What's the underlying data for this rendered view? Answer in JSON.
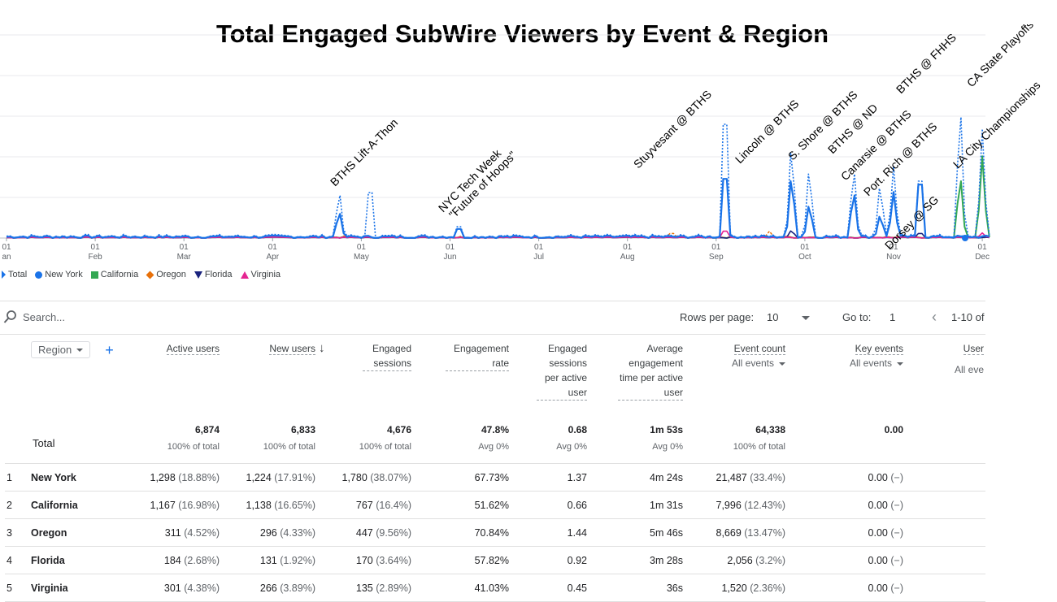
{
  "title": "Total Engaged SubWire Viewers by Event & Region",
  "colors": {
    "total": "#1a73e8",
    "new_york": "#1a73e8",
    "california": "#34a853",
    "oregon": "#e8710a",
    "florida": "#1a237e",
    "virginia": "#e52592"
  },
  "chart_data": {
    "type": "line",
    "x_ticks": [
      {
        "day": "01",
        "month": "an"
      },
      {
        "day": "01",
        "month": "Feb"
      },
      {
        "day": "01",
        "month": "Mar"
      },
      {
        "day": "01",
        "month": "Apr"
      },
      {
        "day": "01",
        "month": "May"
      },
      {
        "day": "01",
        "month": "Jun"
      },
      {
        "day": "01",
        "month": "Jul"
      },
      {
        "day": "01",
        "month": "Aug"
      },
      {
        "day": "01",
        "month": "Sep"
      },
      {
        "day": "01",
        "month": "Oct"
      },
      {
        "day": "01",
        "month": "Nov"
      },
      {
        "day": "01",
        "month": "Dec"
      }
    ],
    "annotations": [
      "BTHS Lift-A-Thon",
      "NYC Tech Week",
      "\"Future of Hoops\"",
      "Stuyvesant @ BTHS",
      "Lincoln @ BTHS",
      "S. Shore @ BTHS",
      "BTHS @ ND",
      "Canarsie @ BTHS",
      "Port. Rich @ BTHS",
      "Dorsey @ SG",
      "BTHS @ FHHS",
      "CA State Playoffs",
      "LA City Championships"
    ],
    "series": [
      {
        "name": "Total",
        "peaks": [
          {
            "month": 3.75,
            "value": 30
          },
          {
            "month": 4.1,
            "value": 40
          },
          {
            "month": 5.1,
            "value": 10
          },
          {
            "month": 8.1,
            "value": 100
          },
          {
            "month": 8.85,
            "value": 60
          },
          {
            "month": 9.05,
            "value": 45
          },
          {
            "month": 9.55,
            "value": 45
          },
          {
            "month": 9.85,
            "value": 35
          },
          {
            "month": 10.0,
            "value": 42
          },
          {
            "month": 10.3,
            "value": 50
          },
          {
            "month": 10.75,
            "value": 85
          },
          {
            "month": 11.0,
            "value": 64
          },
          {
            "month": 11.3,
            "value": 88
          }
        ]
      },
      {
        "name": "New York",
        "peaks": [
          {
            "month": 3.75,
            "value": 17
          },
          {
            "month": 5.1,
            "value": 8
          },
          {
            "month": 8.1,
            "value": 52
          },
          {
            "month": 8.85,
            "value": 40
          },
          {
            "month": 9.05,
            "value": 22
          },
          {
            "month": 9.55,
            "value": 30
          },
          {
            "month": 9.85,
            "value": 15
          },
          {
            "month": 10.0,
            "value": 27
          },
          {
            "month": 10.3,
            "value": 47
          }
        ]
      },
      {
        "name": "California",
        "peaks": [
          {
            "month": 10.75,
            "value": 40
          },
          {
            "month": 11.0,
            "value": 48
          },
          {
            "month": 11.3,
            "value": 45
          }
        ]
      },
      {
        "name": "Oregon",
        "peaks": [
          {
            "month": 7.5,
            "value": 4
          },
          {
            "month": 8.6,
            "value": 4
          }
        ]
      },
      {
        "name": "Florida",
        "peaks": [
          {
            "month": 8.85,
            "value": 5
          },
          {
            "month": 10.3,
            "value": 4
          }
        ]
      },
      {
        "name": "Virginia",
        "peaks": [
          {
            "month": 8.1,
            "value": 6
          },
          {
            "month": 11.0,
            "value": 3
          }
        ]
      }
    ]
  },
  "toolbar": {
    "search_placeholder": "Search...",
    "rows_per_page_label": "Rows per page:",
    "rows_per_page_value": "10",
    "goto_label": "Go to:",
    "goto_value": "1",
    "page_range": "1-10 of"
  },
  "table": {
    "dimension_label": "Region",
    "columns": [
      {
        "label": "Active users",
        "sub": ""
      },
      {
        "label": "New users",
        "sub": ""
      },
      {
        "label": "Engaged sessions",
        "sub": ""
      },
      {
        "label": "Engagement rate",
        "sub": ""
      },
      {
        "label": "Engaged sessions per active user",
        "sub": ""
      },
      {
        "label": "Average engagement time per active user",
        "sub": ""
      },
      {
        "label": "Event count",
        "sub": "All events"
      },
      {
        "label": "Key events",
        "sub": "All events"
      },
      {
        "label": "User",
        "sub": "All eve"
      }
    ],
    "total": {
      "label": "Total",
      "cells": [
        {
          "value": "6,874",
          "sub": "100% of total"
        },
        {
          "value": "6,833",
          "sub": "100% of total"
        },
        {
          "value": "4,676",
          "sub": "100% of total"
        },
        {
          "value": "47.8%",
          "sub": "Avg 0%"
        },
        {
          "value": "0.68",
          "sub": "Avg 0%"
        },
        {
          "value": "1m 53s",
          "sub": "Avg 0%"
        },
        {
          "value": "64,338",
          "sub": "100% of total"
        },
        {
          "value": "0.00",
          "sub": ""
        }
      ]
    },
    "rows": [
      {
        "idx": "1",
        "region": "New York",
        "active": "1,298",
        "active_pct": "(18.88%)",
        "new": "1,224",
        "new_pct": "(17.91%)",
        "engaged": "1,780",
        "engaged_pct": "(38.07%)",
        "rate": "67.73%",
        "per_user": "1.37",
        "avg_time": "4m 24s",
        "events": "21,487",
        "events_pct": "(33.4%)",
        "key": "0.00",
        "key_pct": "(−)"
      },
      {
        "idx": "2",
        "region": "California",
        "active": "1,167",
        "active_pct": "(16.98%)",
        "new": "1,138",
        "new_pct": "(16.65%)",
        "engaged": "767",
        "engaged_pct": "(16.4%)",
        "rate": "51.62%",
        "per_user": "0.66",
        "avg_time": "1m 31s",
        "events": "7,996",
        "events_pct": "(12.43%)",
        "key": "0.00",
        "key_pct": "(−)"
      },
      {
        "idx": "3",
        "region": "Oregon",
        "active": "311",
        "active_pct": "(4.52%)",
        "new": "296",
        "new_pct": "(4.33%)",
        "engaged": "447",
        "engaged_pct": "(9.56%)",
        "rate": "70.84%",
        "per_user": "1.44",
        "avg_time": "5m 46s",
        "events": "8,669",
        "events_pct": "(13.47%)",
        "key": "0.00",
        "key_pct": "(−)"
      },
      {
        "idx": "4",
        "region": "Florida",
        "active": "184",
        "active_pct": "(2.68%)",
        "new": "131",
        "new_pct": "(1.92%)",
        "engaged": "170",
        "engaged_pct": "(3.64%)",
        "rate": "57.82%",
        "per_user": "0.92",
        "avg_time": "3m 28s",
        "events": "2,056",
        "events_pct": "(3.2%)",
        "key": "0.00",
        "key_pct": "(−)"
      },
      {
        "idx": "5",
        "region": "Virginia",
        "active": "301",
        "active_pct": "(4.38%)",
        "new": "266",
        "new_pct": "(3.89%)",
        "engaged": "135",
        "engaged_pct": "(2.89%)",
        "rate": "41.03%",
        "per_user": "0.45",
        "avg_time": "36s",
        "events": "1,520",
        "events_pct": "(2.36%)",
        "key": "0.00",
        "key_pct": "(−)"
      }
    ]
  }
}
